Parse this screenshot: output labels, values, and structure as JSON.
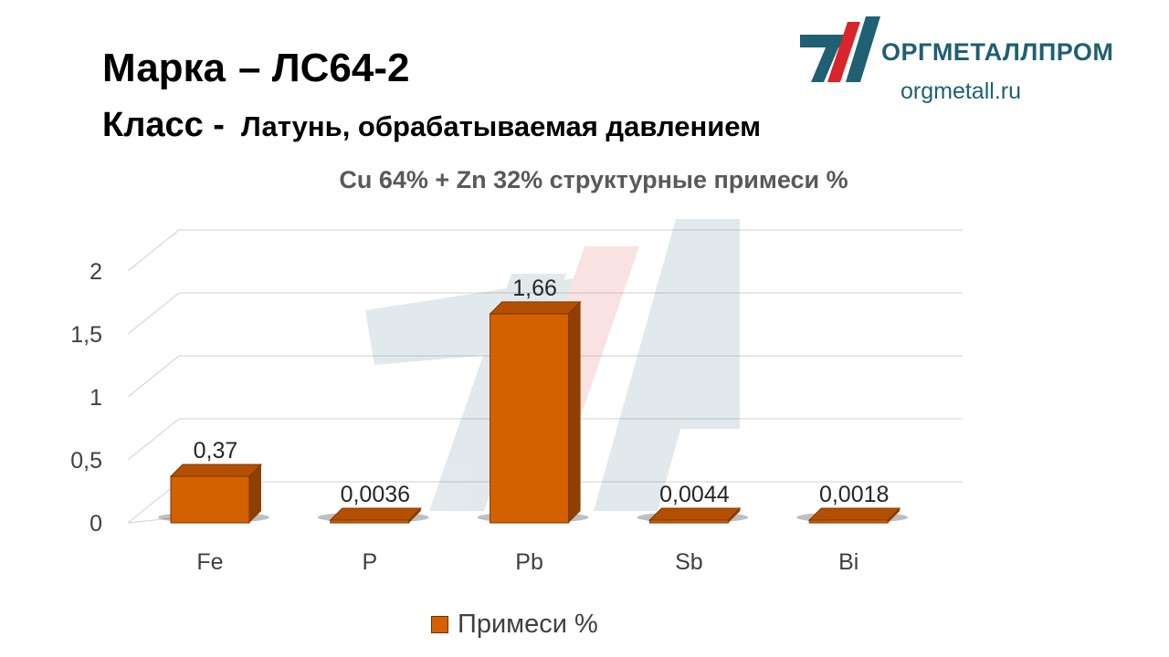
{
  "header": {
    "grade_label": "Марка",
    "grade_value": "– ЛС64-2",
    "class_label": "Класс -",
    "class_value": "Латунь, обрабатываемая давлением"
  },
  "brand": {
    "name": "ОРГМЕТАЛЛПРОМ",
    "url": "orgmetall.ru",
    "colors": {
      "teal": "#1f6072",
      "red": "#d9252a"
    }
  },
  "chart_data": {
    "type": "bar",
    "title": "Cu 64% + Zn 32% структурные примеси %",
    "categories": [
      "Fe",
      "P",
      "Pb",
      "Sb",
      "Bi"
    ],
    "series": [
      {
        "name": "Примеси %",
        "values": [
          0.37,
          0.0036,
          1.66,
          0.0044,
          0.0018
        ],
        "color": "#d46100"
      }
    ],
    "data_labels": [
      "0,37",
      "0,0036",
      "1,66",
      "0,0044",
      "0,0018"
    ],
    "y_ticks": [
      "0",
      "0,5",
      "1",
      "1,5",
      "2"
    ],
    "ylim": [
      0,
      2
    ],
    "grid": true,
    "legend_position": "bottom",
    "style": "3d-column"
  }
}
